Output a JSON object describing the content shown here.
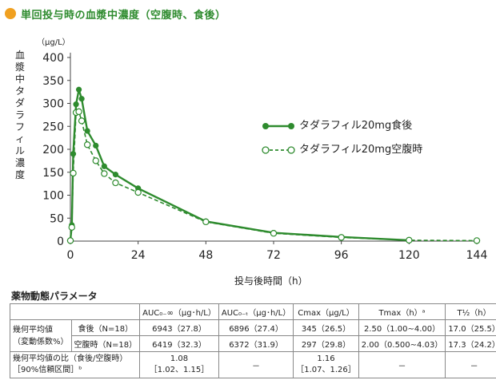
{
  "title": "単回投与時の血漿中濃度（空腹時、食後）",
  "chart_data": {
    "type": "line",
    "y_axis_label": "血漿中タダラフィル濃度",
    "y_unit": "（μg/L）",
    "x_axis_label": "投与後時間（h）",
    "ylim": [
      0,
      400
    ],
    "xlim": [
      0,
      144
    ],
    "y_ticks": [
      0,
      50,
      100,
      150,
      200,
      250,
      300,
      350,
      400
    ],
    "x_ticks": [
      0,
      24,
      48,
      72,
      96,
      120,
      144
    ],
    "series": [
      {
        "name": "タダラフィル20mg食後",
        "style": "solid",
        "marker": "filled",
        "color": "#2e8b2e",
        "x": [
          0,
          0.5,
          1,
          2,
          3,
          4,
          6,
          9,
          12,
          16,
          24,
          48,
          72,
          96,
          120
        ],
        "y": [
          2,
          35,
          190,
          298,
          330,
          310,
          240,
          208,
          163,
          145,
          115,
          43,
          18,
          9,
          2
        ]
      },
      {
        "name": "タダラフィル20mg空腹時",
        "style": "dashed",
        "marker": "open",
        "color": "#2e8b2e",
        "x": [
          0,
          0.5,
          1,
          2,
          3,
          4,
          6,
          9,
          12,
          16,
          24,
          48,
          72,
          96,
          120,
          144
        ],
        "y": [
          1,
          30,
          148,
          280,
          282,
          262,
          210,
          175,
          147,
          127,
          106,
          42,
          17,
          8,
          2,
          1
        ]
      }
    ]
  },
  "pk_table": {
    "title": "薬物動態パラメータ",
    "headers": [
      "",
      "",
      "AUC₀₋∞（μg･h/L）",
      "AUC₀₋ₜ（μg･h/L）",
      "Cmax（μg/L）",
      "Tmax（h）ᵃ",
      "T½（h）"
    ],
    "group_label_line1": "幾何平均値",
    "group_label_line2": "（変動係数%）",
    "rows": [
      {
        "label": "食後（N=18）",
        "values": [
          "6943（27.8）",
          "6896（27.4）",
          "345（26.5）",
          "2.50（1.00∼4.00）",
          "17.0（25.5）"
        ]
      },
      {
        "label": "空腹時（N=18）",
        "values": [
          "6419（32.3）",
          "6372（31.9）",
          "297（29.8）",
          "2.00（0.500∼4.03）",
          "17.3（24.2）"
        ]
      }
    ],
    "ratio_label_line1": "幾何平均値の比（食後/空腹時）",
    "ratio_label_line2": "［90%信頼区間］ᵇ",
    "ratio_values": [
      {
        "line1": "1.08",
        "line2": "［1.02、1.15］"
      },
      {
        "line1": "－",
        "line2": ""
      },
      {
        "line1": "1.16",
        "line2": "［1.07、1.26］"
      },
      {
        "line1": "－",
        "line2": ""
      },
      {
        "line1": "－",
        "line2": ""
      }
    ]
  }
}
